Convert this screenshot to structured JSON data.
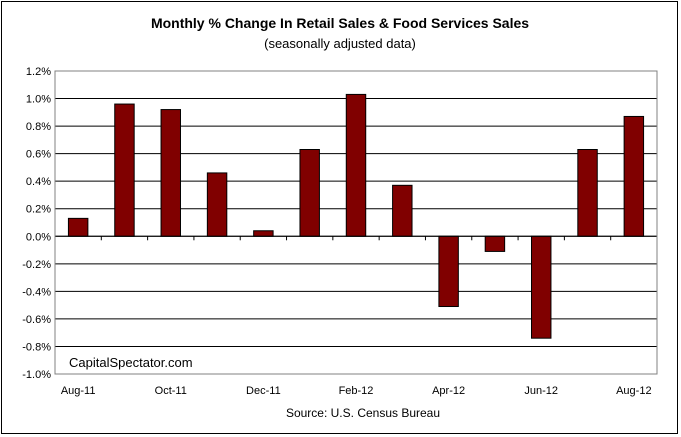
{
  "chart_data": {
    "type": "bar",
    "title": "Monthly %  Change In Retail Sales & Food Services Sales",
    "subtitle": "(seasonally adjusted data)",
    "source": "Source: U.S. Census Bureau",
    "watermark": "CapitalSpectator.com",
    "xlabel": "",
    "ylabel": "",
    "ylim": [
      -1.0,
      1.2
    ],
    "y_ticks": [
      "1.2%",
      "1.0%",
      "0.8%",
      "0.6%",
      "0.4%",
      "0.2%",
      "0.0%",
      "-0.2%",
      "-0.4%",
      "-0.6%",
      "-0.8%",
      "-1.0%"
    ],
    "y_tick_values": [
      1.2,
      1.0,
      0.8,
      0.6,
      0.4,
      0.2,
      0.0,
      -0.2,
      -0.4,
      -0.6,
      -0.8,
      -1.0
    ],
    "categories": [
      "Aug-11",
      "Sep-11",
      "Oct-11",
      "Nov-11",
      "Dec-11",
      "Jan-12",
      "Feb-12",
      "Mar-12",
      "Apr-12",
      "May-12",
      "Jun-12",
      "Jul-12",
      "Aug-12"
    ],
    "x_tick_labels": [
      "Aug-11",
      "",
      "Oct-11",
      "",
      "Dec-11",
      "",
      "Feb-12",
      "",
      "Apr-12",
      "",
      "Jun-12",
      "",
      "Aug-12"
    ],
    "values": [
      0.13,
      0.96,
      0.92,
      0.46,
      0.04,
      0.63,
      1.03,
      0.37,
      -0.51,
      -0.11,
      -0.74,
      0.63,
      0.87
    ],
    "grid": true,
    "bar_color": "#800000",
    "plot_background": "#ffffff"
  }
}
